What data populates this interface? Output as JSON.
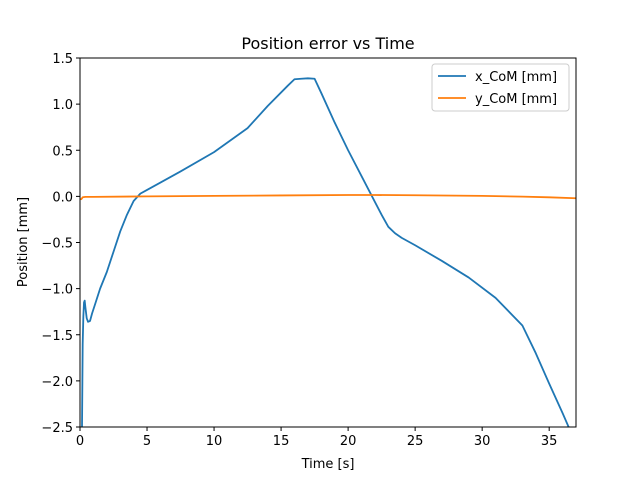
{
  "chart_data": {
    "type": "line",
    "title": "Position error vs Time",
    "xlabel": "Time [s]",
    "ylabel": "Position [mm]",
    "xlim": [
      0,
      37
    ],
    "ylim": [
      -2.5,
      1.5
    ],
    "xticks": [
      0,
      5,
      10,
      15,
      20,
      25,
      30,
      35
    ],
    "xtick_labels": [
      "0",
      "5",
      "10",
      "15",
      "20",
      "25",
      "30",
      "35"
    ],
    "yticks": [
      -2.5,
      -2.0,
      -1.5,
      -1.0,
      -0.5,
      0.0,
      0.5,
      1.0,
      1.5
    ],
    "ytick_labels": [
      "−2.5",
      "−2.0",
      "−1.5",
      "−1.0",
      "−0.5",
      "0.0",
      "0.5",
      "1.0",
      "1.5"
    ],
    "grid": false,
    "legend_position": "top-right",
    "series": [
      {
        "name": "x_CoM [mm]",
        "color": "#1f77b4",
        "x": [
          0.15,
          0.2,
          0.25,
          0.3,
          0.35,
          0.4,
          0.5,
          0.6,
          0.75,
          0.9,
          1.1,
          1.5,
          2.0,
          2.5,
          3.0,
          3.5,
          4.0,
          4.5,
          5.0,
          6.0,
          7.5,
          10.0,
          12.5,
          14.0,
          15.5,
          16.0,
          16.5,
          17.0,
          17.5,
          18.0,
          19.0,
          20.0,
          21.0,
          22.0,
          22.5,
          23.0,
          23.5,
          24.0,
          25.0,
          27.0,
          29.0,
          31.0,
          33.0,
          34.0,
          35.0,
          36.0,
          36.6
        ],
        "y": [
          -2.5,
          -1.6,
          -1.3,
          -1.15,
          -1.13,
          -1.2,
          -1.32,
          -1.36,
          -1.35,
          -1.27,
          -1.18,
          -1.0,
          -0.82,
          -0.6,
          -0.38,
          -0.2,
          -0.05,
          0.03,
          0.07,
          0.15,
          0.27,
          0.48,
          0.74,
          0.98,
          1.2,
          1.27,
          1.275,
          1.28,
          1.275,
          1.12,
          0.8,
          0.5,
          0.22,
          -0.06,
          -0.2,
          -0.33,
          -0.4,
          -0.45,
          -0.53,
          -0.7,
          -0.88,
          -1.1,
          -1.4,
          -1.7,
          -2.03,
          -2.35,
          -2.55
        ]
      },
      {
        "name": "y_CoM [mm]",
        "color": "#ff7f0e",
        "x": [
          0.1,
          0.2,
          0.4,
          1.0,
          5.0,
          10.0,
          15.0,
          20.0,
          22.0,
          25.0,
          30.0,
          33.0,
          35.0,
          37.0
        ],
        "y": [
          -0.03,
          -0.01,
          -0.005,
          -0.005,
          0.0,
          0.005,
          0.01,
          0.015,
          0.015,
          0.012,
          0.005,
          -0.003,
          -0.01,
          -0.02
        ]
      }
    ]
  }
}
